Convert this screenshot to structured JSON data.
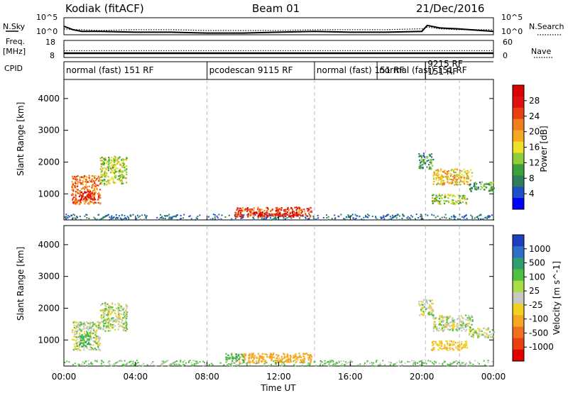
{
  "header": {
    "station": "Kodiak (fitACF)",
    "beam": "Beam 01",
    "date": "21/Dec/2016"
  },
  "strip_labels": {
    "nsky": "N.Sky",
    "nsearch": "N.Search",
    "freq_line1": "Freq.",
    "freq_line2": "[MHz]",
    "nave": "Nave",
    "cpid": "CPID"
  },
  "noise_axis": {
    "left_ticks": [
      "10^5",
      "10^0"
    ],
    "right_ticks": [
      "10^5",
      "10^0"
    ]
  },
  "freq_axis": {
    "left_ticks": [
      "18",
      "8"
    ],
    "right_ticks": [
      "60",
      "0"
    ]
  },
  "cpid_segments": [
    {
      "label": "normal (fast) 151 RF",
      "start_h": 0,
      "end_h": 8
    },
    {
      "label": "pcodescan 9115 RF",
      "start_h": 8,
      "end_h": 14
    },
    {
      "label": "normal (fast) 151 RF",
      "start_h": 14,
      "end_h": 20.2
    },
    {
      "label": "normal (fast) 151 RF",
      "start_h": 17.5,
      "end_h": 20.2
    },
    {
      "label": "9215 RF",
      "start_h": 20.2,
      "end_h": 22.1
    },
    {
      "label": "151 RF",
      "start_h": 20.2,
      "end_h": 22.1
    }
  ],
  "time_axis": {
    "ticks": [
      "00:00",
      "04:00",
      "08:00",
      "12:00",
      "16:00",
      "20:00",
      "00:00"
    ],
    "label": "Time UT",
    "range_h": [
      0,
      24
    ]
  },
  "range_axis": {
    "label": "Slant Range [km]",
    "ticks": [
      "1000",
      "2000",
      "3000",
      "4000"
    ],
    "range_km": [
      180,
      4600
    ]
  },
  "power_colorbar": {
    "label": "Power [dB]",
    "ticks": [
      "4",
      "8",
      "12",
      "16",
      "20",
      "24",
      "28"
    ],
    "colors": [
      "#0000ff",
      "#1e50c8",
      "#2f7f5f",
      "#3ca03c",
      "#8fcd3a",
      "#f0e02a",
      "#f5a623",
      "#f07d1e",
      "#e84010",
      "#e01010",
      "#dd0000"
    ]
  },
  "velocity_colorbar": {
    "label": "Velocity [m s^-1]",
    "ticks": [
      "1000",
      "500",
      "100",
      "25",
      "-25",
      "-100",
      "-500",
      "-1000"
    ],
    "colors": [
      "#1e40c0",
      "#2f6fc8",
      "#2f9f6f",
      "#4fbf3f",
      "#aadd44",
      "#c8c8c0",
      "#f0d020",
      "#f5a623",
      "#f07020",
      "#e84010",
      "#e00000"
    ]
  },
  "chart_data": [
    {
      "type": "line",
      "name": "noise",
      "x": [
        0,
        0.5,
        1,
        2,
        4,
        6,
        8,
        10,
        12,
        14,
        16,
        18,
        20,
        20.3,
        21,
        22,
        24
      ],
      "series": [
        {
          "name": "N.Sky",
          "values": [
            0.5,
            0.3,
            0.2,
            0.2,
            0.15,
            0.15,
            0.1,
            0.1,
            0.15,
            0.2,
            0.15,
            0.15,
            0.2,
            0.55,
            0.4,
            0.35,
            0.2
          ]
        },
        {
          "name": "N.Search",
          "values": [
            0.35,
            0.3,
            0.3,
            0.25,
            0.3,
            0.3,
            0.25,
            0.25,
            0.25,
            0.3,
            0.3,
            0.3,
            0.35,
            0.45,
            0.35,
            0.3,
            0.3
          ]
        }
      ]
    },
    {
      "type": "line",
      "name": "frequency",
      "x": [
        0,
        24
      ],
      "series": [
        {
          "name": "Freq.",
          "values": [
            10.5,
            10.5
          ]
        },
        {
          "name": "Nave",
          "values": [
            24,
            24
          ]
        }
      ]
    },
    {
      "type": "heatmap",
      "name": "power",
      "x_unit": "hour UT",
      "y_unit": "km",
      "blobs": [
        {
          "t0": 0.4,
          "t1": 2.0,
          "r0": 700,
          "r1": 1600,
          "value": 22
        },
        {
          "t0": 0.9,
          "t1": 1.7,
          "r0": 800,
          "r1": 1100,
          "value": 28
        },
        {
          "t0": 2.0,
          "t1": 3.5,
          "r0": 1300,
          "r1": 2200,
          "value": 14
        },
        {
          "t0": 9.5,
          "t1": 13.8,
          "r0": 300,
          "r1": 600,
          "value": 24
        },
        {
          "t0": 10.5,
          "t1": 13.0,
          "r0": 300,
          "r1": 450,
          "value": 28
        },
        {
          "t0": 19.8,
          "t1": 20.6,
          "r0": 1800,
          "r1": 2300,
          "value": 10
        },
        {
          "t0": 20.6,
          "t1": 22.8,
          "r0": 1300,
          "r1": 1800,
          "value": 18
        },
        {
          "t0": 22.6,
          "t1": 24.0,
          "r0": 1100,
          "r1": 1400,
          "value": 10
        },
        {
          "t0": 20.5,
          "t1": 22.5,
          "r0": 700,
          "r1": 1000,
          "value": 14
        }
      ]
    },
    {
      "type": "heatmap",
      "name": "velocity",
      "x_unit": "hour UT",
      "y_unit": "km",
      "blobs": [
        {
          "t0": 0.4,
          "t1": 2.0,
          "r0": 700,
          "r1": 1600,
          "value": 0
        },
        {
          "t0": 0.8,
          "t1": 1.4,
          "r0": 800,
          "r1": 1200,
          "value": 80
        },
        {
          "t0": 2.0,
          "t1": 3.5,
          "r0": 1300,
          "r1": 2200,
          "value": 0
        },
        {
          "t0": 9.5,
          "t1": 13.8,
          "r0": 300,
          "r1": 600,
          "value": -150
        },
        {
          "t0": 9.0,
          "t1": 10.0,
          "r0": 350,
          "r1": 600,
          "value": 80
        },
        {
          "t0": 19.8,
          "t1": 20.6,
          "r0": 1800,
          "r1": 2300,
          "value": 0
        },
        {
          "t0": 20.6,
          "t1": 22.8,
          "r0": 1300,
          "r1": 1800,
          "value": 0
        },
        {
          "t0": 22.6,
          "t1": 24.0,
          "r0": 1100,
          "r1": 1400,
          "value": 0
        },
        {
          "t0": 20.5,
          "t1": 22.5,
          "r0": 700,
          "r1": 1000,
          "value": -80
        }
      ]
    }
  ]
}
